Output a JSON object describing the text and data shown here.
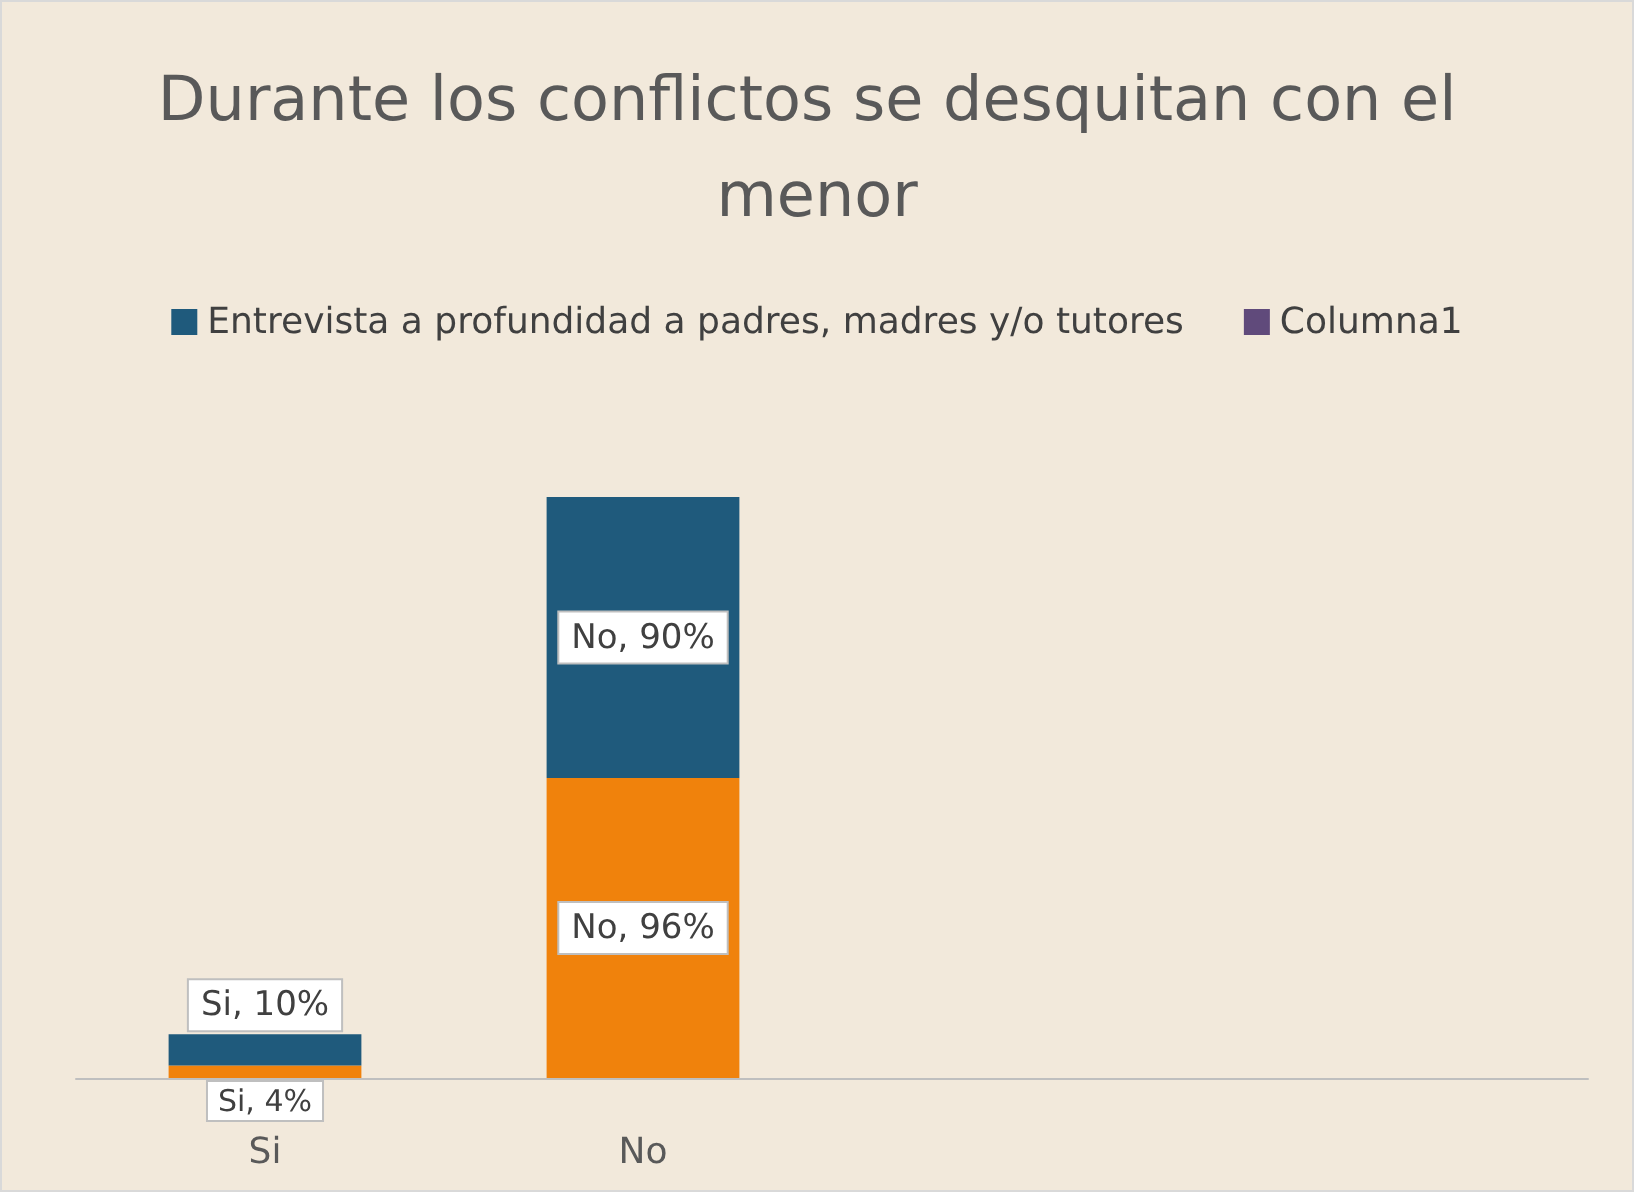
{
  "chart_data": {
    "type": "bar",
    "title": "Durante los conflictos se desquitan con el menor",
    "categories": [
      "Si",
      "No",
      null,
      null
    ],
    "stacked": true,
    "legend": "top",
    "series": [
      {
        "color": "#f0820c",
        "values": [
          4,
          96,
          null,
          null
        ],
        "value_labels": [
          "Si, 4%",
          "No, 96%",
          null,
          null
        ]
      },
      {
        "name": "Entrevista a profundidad a padres, madres y/o tutores",
        "color": "#1f5a7c",
        "values": [
          10,
          90,
          null,
          null
        ],
        "value_labels": [
          "Si, 10%",
          "No, 90%",
          null,
          null
        ]
      },
      {
        "name": "Columna1",
        "color": "#604a7b",
        "values": [
          null,
          null,
          null,
          null
        ]
      }
    ]
  }
}
